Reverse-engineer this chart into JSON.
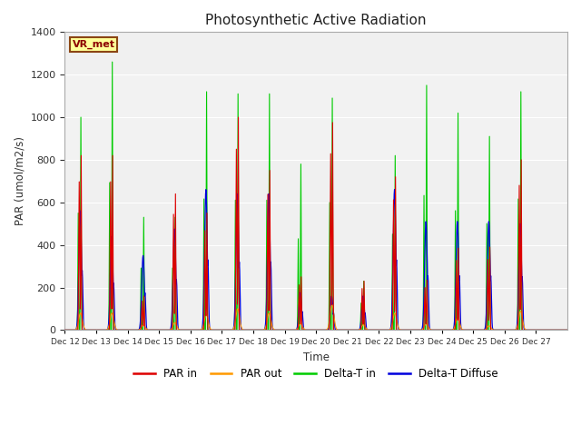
{
  "title": "Photosynthetic Active Radiation",
  "xlabel": "Time",
  "ylabel": "PAR (umol/m2/s)",
  "ylim": [
    0,
    1400
  ],
  "yticks": [
    0,
    200,
    400,
    600,
    800,
    1000,
    1200,
    1400
  ],
  "background_color": "#ffffff",
  "plot_bg_color": "#f0f0f0",
  "label_box_text": "VR_met",
  "legend_labels": [
    "PAR in",
    "PAR out",
    "Delta-T in",
    "Delta-T Diffuse"
  ],
  "legend_colors": [
    "#dd0000",
    "#ff9900",
    "#00cc00",
    "#0000dd"
  ],
  "line_colors": {
    "par_in": "#dd0000",
    "par_out": "#ff9900",
    "delta_t_in": "#00cc00",
    "delta_t_diffuse": "#0000dd"
  },
  "days": [
    12,
    13,
    14,
    15,
    16,
    17,
    18,
    19,
    20,
    21,
    22,
    23,
    24,
    25,
    26,
    27
  ],
  "n_points_per_day": 96,
  "par_in_peaks": [
    820,
    820,
    160,
    640,
    550,
    1000,
    750,
    250,
    975,
    230,
    720,
    235,
    385,
    390,
    800,
    0
  ],
  "par_out_peaks": [
    80,
    80,
    25,
    35,
    75,
    100,
    80,
    30,
    120,
    25,
    80,
    30,
    60,
    20,
    90,
    0
  ],
  "delta_t_peaks": [
    1000,
    1260,
    530,
    530,
    1120,
    1110,
    1110,
    780,
    1090,
    230,
    820,
    1150,
    1020,
    910,
    1120,
    0
  ],
  "delta_d_peaks": [
    560,
    440,
    350,
    475,
    660,
    640,
    640,
    175,
    160,
    160,
    660,
    510,
    510,
    510,
    500,
    0
  ],
  "par_in_has_double": [
    true,
    false,
    false,
    false,
    true,
    false,
    false,
    false,
    false,
    false,
    false,
    false,
    false,
    false,
    false,
    false
  ],
  "seed": 7
}
